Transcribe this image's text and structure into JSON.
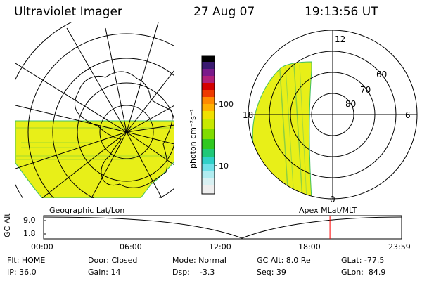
{
  "header": {
    "instrument": "Ultraviolet Imager",
    "date": "27 Aug 07",
    "time": "19:13:56 UT"
  },
  "colorbar": {
    "unit_label": "photon cm⁻²s⁻¹",
    "ticks": [
      "100",
      "10"
    ]
  },
  "polar_plot": {
    "mlt_labels": [
      "12",
      "18",
      "6",
      "0"
    ],
    "mlat_labels": [
      "60",
      "70",
      "80"
    ]
  },
  "timeline": {
    "left_label": "Geographic Lat/Lon",
    "right_label": "Apex MLat/MLT",
    "y_axis_label": "GC Alt",
    "y_ticks": [
      "9.0",
      "1.8"
    ],
    "x_ticks": [
      "00:00",
      "06:00",
      "12:00",
      "18:00",
      "23:59"
    ],
    "current_time_marker_fraction": 0.7998
  },
  "info": {
    "row1": {
      "filter": "Flt: HOME",
      "door": "Door: Closed",
      "mode": "Mode: Normal",
      "gc_alt": "GC Alt: 8.0 Re",
      "glat": "GLat: -77.5"
    },
    "row2": {
      "ip": "IP: 36.0",
      "gain": "Gain: 14",
      "dsp": "Dsp:    -3.3",
      "seq": "Seq: 39",
      "glon": "GLon:  84.9"
    }
  },
  "colors": {
    "aurora_fill": "#e8ef18",
    "aurora_edge": "#40c060",
    "marker": "#ff0000"
  }
}
